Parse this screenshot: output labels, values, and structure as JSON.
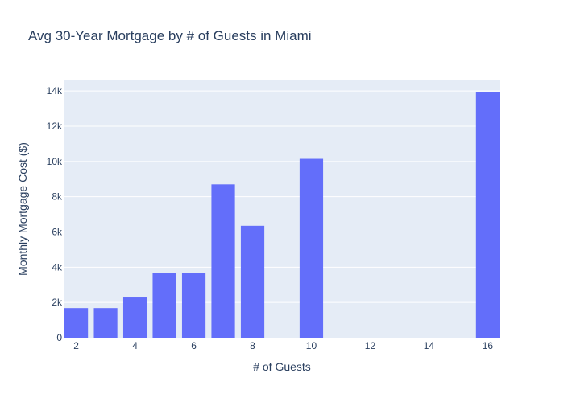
{
  "chart_data": {
    "type": "bar",
    "title": "Avg 30-Year Mortgage by # of Guests in Miami",
    "xlabel": "# of Guests",
    "ylabel": "Monthly Mortgage Cost ($)",
    "x": [
      2,
      3,
      4,
      5,
      6,
      7,
      8,
      10,
      16
    ],
    "values": [
      1680,
      1680,
      2280,
      3680,
      3680,
      8700,
      6350,
      10150,
      13950
    ],
    "xlim": [
      1.6,
      16.4
    ],
    "ylim": [
      0,
      14600
    ],
    "x_ticks": [
      2,
      4,
      6,
      8,
      10,
      12,
      14,
      16
    ],
    "x_tick_labels": [
      "2",
      "4",
      "6",
      "8",
      "10",
      "12",
      "14",
      "16"
    ],
    "y_ticks": [
      0,
      2000,
      4000,
      6000,
      8000,
      10000,
      12000,
      14000
    ],
    "y_tick_labels": [
      "0",
      "2k",
      "4k",
      "6k",
      "8k",
      "10k",
      "12k",
      "14k"
    ],
    "bar_color": "#636efa",
    "plot_background": "#e5ecf6",
    "grid": true,
    "legend": "none"
  }
}
